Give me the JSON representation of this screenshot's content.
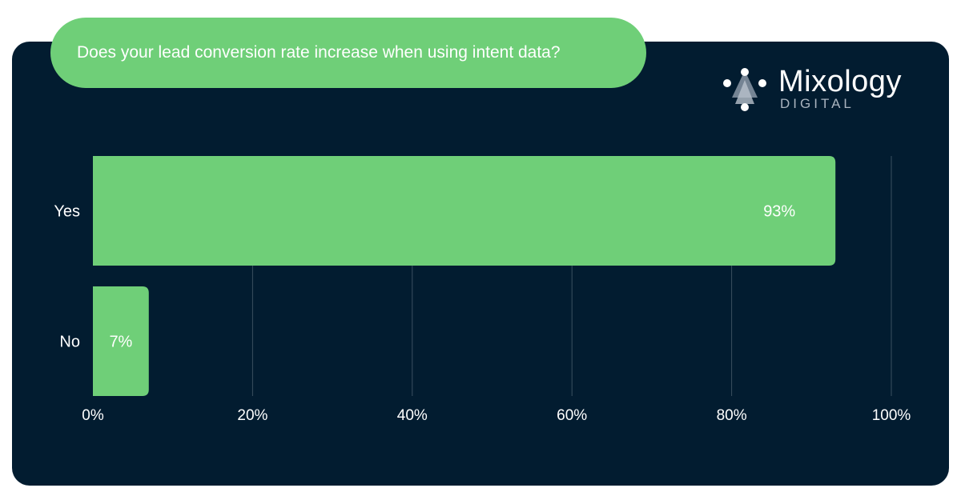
{
  "colors": {
    "background": "#021c30",
    "bar": "#6fcf78",
    "grid": "#3b5060",
    "text": "#ffffff"
  },
  "logo": {
    "name": "Mixology",
    "sub": "DIGITAL",
    "icon": "mixology-logo-icon"
  },
  "chart_data": {
    "type": "bar",
    "orientation": "horizontal",
    "title": "Does your lead conversion rate increase when using intent data?",
    "categories": [
      "Yes",
      "No"
    ],
    "values": [
      93,
      7
    ],
    "value_labels": [
      "93%",
      "7%"
    ],
    "xlim": [
      0,
      100
    ],
    "xticks": [
      0,
      20,
      40,
      60,
      80,
      100
    ],
    "xtick_labels": [
      "0%",
      "20%",
      "40%",
      "60%",
      "80%",
      "100%"
    ],
    "grid": "vertical"
  }
}
